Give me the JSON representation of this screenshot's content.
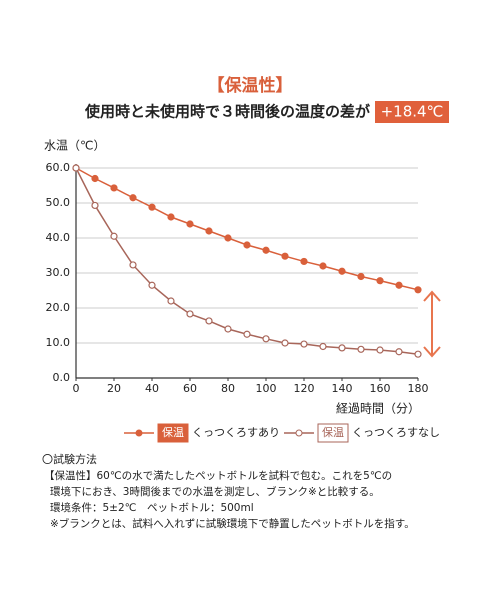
{
  "chart_data": {
    "type": "line",
    "title": "【保温性】",
    "subtitle": "使用時と未使用時で３時間後の温度の差が",
    "highlight": "+18.4℃",
    "y_label": "水温（℃）",
    "x_label": "経過時間（分）",
    "x": [
      0,
      10,
      20,
      30,
      40,
      50,
      60,
      70,
      80,
      90,
      100,
      110,
      120,
      130,
      140,
      150,
      160,
      170,
      180
    ],
    "series": [
      {
        "name": "くっつくろすあり",
        "badge": "保温",
        "color": "#d9603b",
        "marker": "filled",
        "values": [
          60,
          57,
          54.3,
          51.5,
          48.8,
          46,
          44,
          42,
          40,
          38,
          36.5,
          34.8,
          33.3,
          32,
          30.5,
          29,
          27.8,
          26.5,
          25.2
        ]
      },
      {
        "name": "くっつくろすなし",
        "badge": "保温",
        "color": "#a8665a",
        "marker": "hollow",
        "values": [
          60,
          49.3,
          40.5,
          32.3,
          26.5,
          22,
          18.3,
          16.3,
          14,
          12.5,
          11.2,
          10,
          9.7,
          9,
          8.6,
          8.2,
          8,
          7.5,
          6.8
        ]
      }
    ],
    "xlim": [
      0,
      180
    ],
    "xticks": [
      0,
      20,
      40,
      60,
      80,
      100,
      120,
      140,
      160,
      180
    ],
    "ylim": [
      0,
      60
    ],
    "yticks": [
      {
        "value": 0,
        "label": "0.0"
      },
      {
        "value": 10,
        "label": "10.0"
      },
      {
        "value": 20,
        "label": "20.0"
      },
      {
        "value": 30,
        "label": "30.0"
      },
      {
        "value": 40,
        "label": "40.0"
      },
      {
        "value": 50,
        "label": "50.0"
      },
      {
        "value": 60,
        "label": "60.0"
      }
    ],
    "grid": true
  },
  "notes": {
    "heading": "〇試験方法",
    "lines": [
      "【保温性】60℃の水で満たしたペットボトルを試料で包む。これを5℃の",
      "環境下におき、3時間後までの水温を測定し、ブランク※と比較する。",
      "環境条件：5±2℃　ペットボトル：500ml",
      "※ブランクとは、試料へ入れずに試験環境下で静置したペットボトルを指す。"
    ]
  }
}
